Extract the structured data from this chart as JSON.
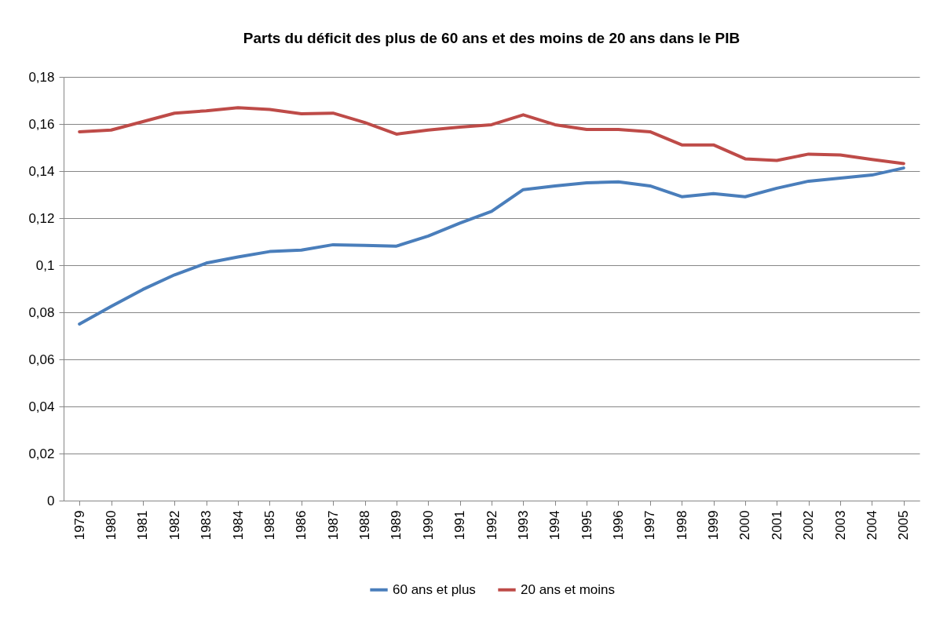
{
  "chart_data": {
    "type": "line",
    "title": "Parts du déficit des plus de 60 ans et des moins de 20 ans dans le PIB",
    "categories": [
      "1979",
      "1980",
      "1981",
      "1982",
      "1983",
      "1984",
      "1985",
      "1986",
      "1987",
      "1988",
      "1989",
      "1990",
      "1991",
      "1992",
      "1993",
      "1994",
      "1995",
      "1996",
      "1997",
      "1998",
      "1999",
      "2000",
      "2001",
      "2002",
      "2003",
      "2004",
      "2005"
    ],
    "series": [
      {
        "name": "60 ans et plus",
        "color": "#4a7ebb",
        "values": [
          0.075,
          0.0825,
          0.0897,
          0.0959,
          0.1009,
          0.1035,
          0.1058,
          0.1064,
          0.1087,
          0.1084,
          0.1081,
          0.1124,
          0.1179,
          0.1229,
          0.1321,
          0.1337,
          0.135,
          0.1354,
          0.1337,
          0.1291,
          0.1304,
          0.1291,
          0.1327,
          0.1357,
          0.137,
          0.1383,
          0.1413
        ]
      },
      {
        "name": "20 ans et moins",
        "color": "#be4b48",
        "values": [
          0.1567,
          0.1574,
          0.161,
          0.1646,
          0.1656,
          0.1669,
          0.1662,
          0.1643,
          0.1646,
          0.1606,
          0.1557,
          0.1574,
          0.1587,
          0.1597,
          0.1639,
          0.1597,
          0.1577,
          0.1577,
          0.1567,
          0.1511,
          0.1511,
          0.1452,
          0.1445,
          0.1472,
          0.1468,
          0.1449,
          0.1432
        ]
      }
    ],
    "ylim": [
      0,
      0.18
    ],
    "yticks": [
      0,
      {
        "value": 0.02,
        "label": "0,02"
      },
      {
        "value": 0.04,
        "label": "0,04"
      },
      {
        "value": 0.06,
        "label": "0,06"
      },
      {
        "value": 0.08,
        "label": "0,08"
      },
      {
        "value": 0.1,
        "label": "0,1"
      },
      {
        "value": 0.12,
        "label": "0,12"
      },
      {
        "value": 0.14,
        "label": "0,14"
      },
      {
        "value": 0.16,
        "label": "0,16"
      },
      {
        "value": 0.18,
        "label": "0,18"
      }
    ],
    "grid": "y",
    "legend": "bottom",
    "line_style": "solid",
    "marker": "none"
  }
}
